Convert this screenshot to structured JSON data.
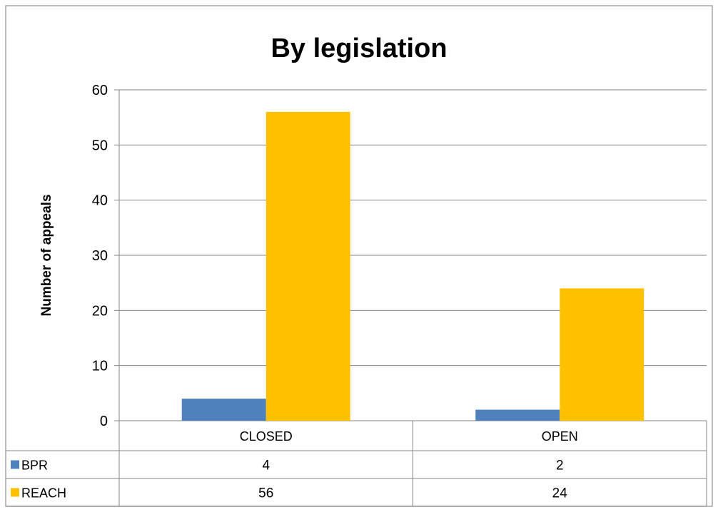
{
  "chart_data": {
    "type": "bar",
    "title": "By legislation",
    "xlabel": "",
    "ylabel": "Number of appeals",
    "categories": [
      "CLOSED",
      "OPEN"
    ],
    "series": [
      {
        "name": "BPR",
        "values": [
          4,
          2
        ],
        "color": "#4f81bd"
      },
      {
        "name": "REACH",
        "values": [
          56,
          24
        ],
        "color": "#ffc000"
      }
    ],
    "ylim": [
      0,
      60
    ],
    "yticks": [
      0,
      10,
      20,
      30,
      40,
      50,
      60
    ],
    "grid": true,
    "legend": "data-table"
  }
}
